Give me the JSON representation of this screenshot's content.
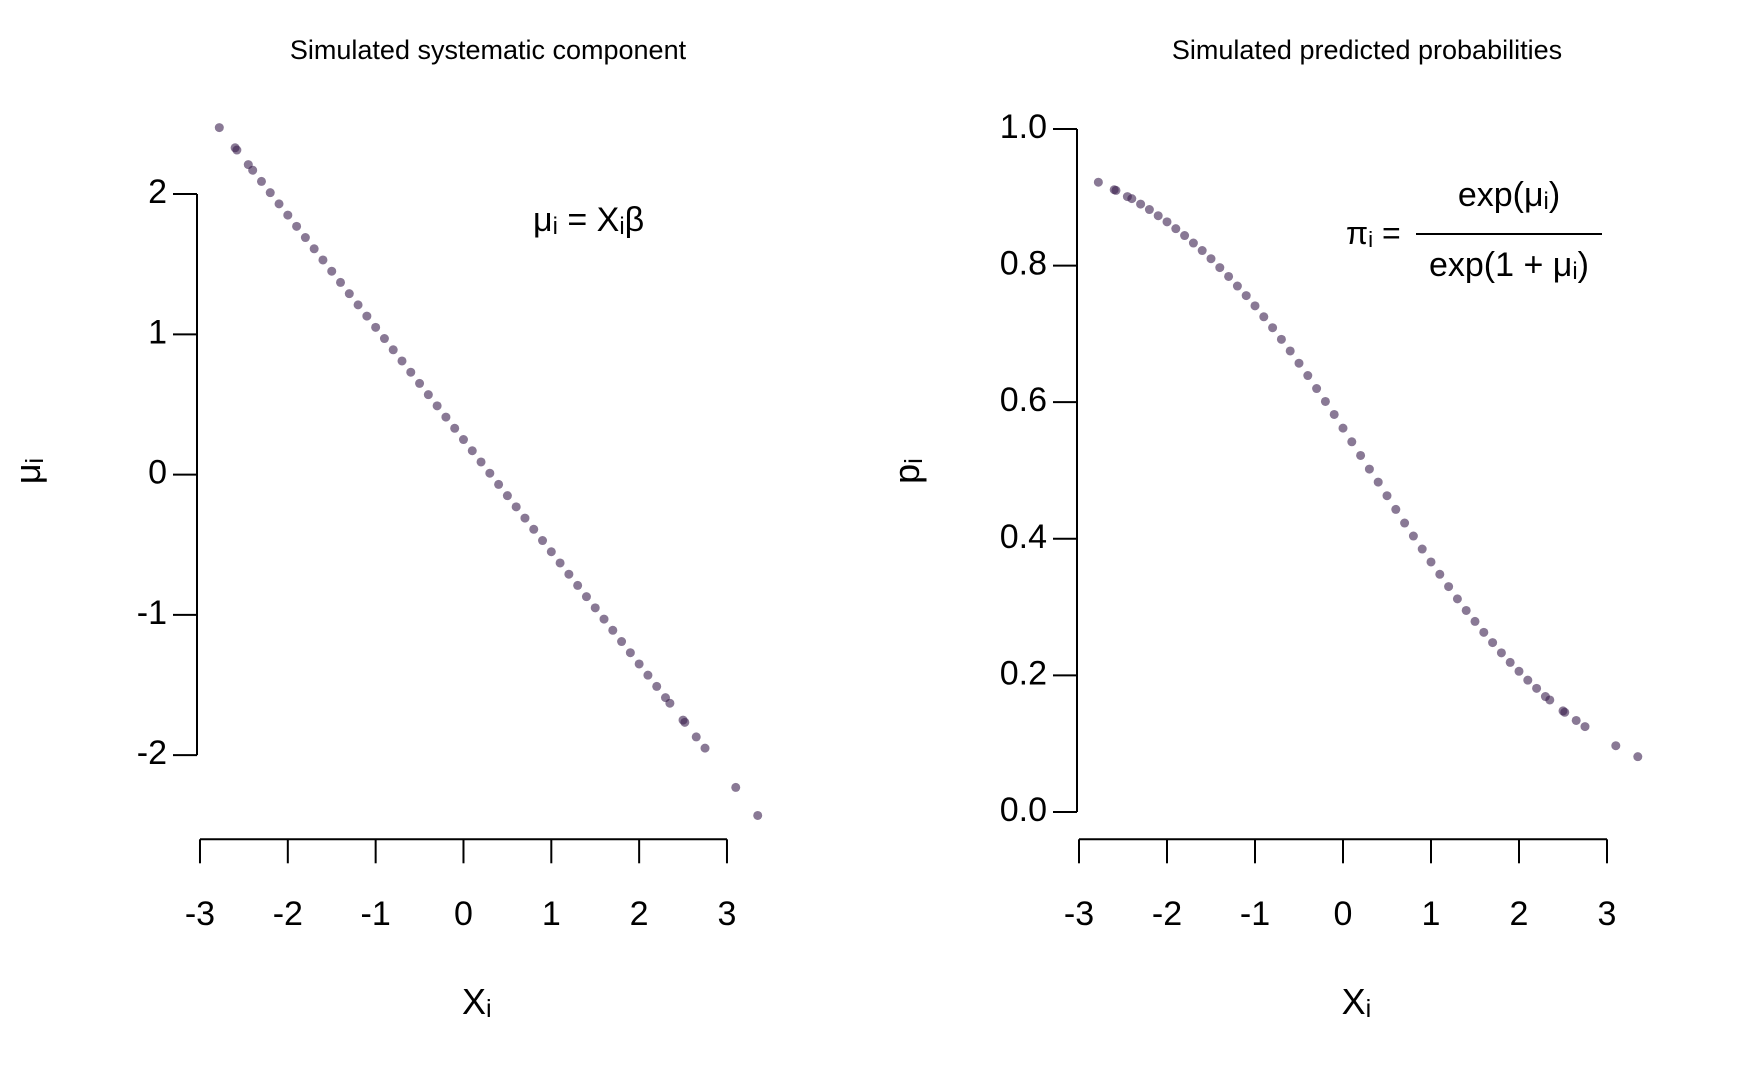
{
  "chart_data": [
    {
      "type": "scatter",
      "title": "Simulated systematic component",
      "xlabel": [
        {
          "text": "X"
        },
        {
          "text": "i",
          "sub": true
        }
      ],
      "ylabel": [
        {
          "text": "μ"
        },
        {
          "text": "i",
          "sub": true
        }
      ],
      "annotation": [
        {
          "text": "μ"
        },
        {
          "text": "i",
          "sub": true
        },
        {
          "text": " = X"
        },
        {
          "text": "i",
          "sub": true
        },
        {
          "text": "β"
        }
      ],
      "xlim": [
        -3.1,
        3.45
      ],
      "ylim": [
        -2.6,
        2.6
      ],
      "xticks": [
        -3,
        -2,
        -1,
        0,
        1,
        2,
        3
      ],
      "yticks": [
        -2,
        -1,
        0,
        1,
        2
      ],
      "series": [
        {
          "color": "#3b1f4e",
          "x": [
            -2.78,
            -2.6,
            -2.58,
            -2.45,
            -2.4,
            -2.3,
            -2.2,
            -2.1,
            -2.0,
            -1.9,
            -1.8,
            -1.7,
            -1.6,
            -1.5,
            -1.4,
            -1.3,
            -1.2,
            -1.1,
            -1.0,
            -0.9,
            -0.8,
            -0.7,
            -0.6,
            -0.5,
            -0.4,
            -0.3,
            -0.2,
            -0.1,
            0,
            0.1,
            0.2,
            0.3,
            0.4,
            0.5,
            0.6,
            0.7,
            0.8,
            0.9,
            1.0,
            1.1,
            1.2,
            1.3,
            1.4,
            1.5,
            1.6,
            1.7,
            1.8,
            1.9,
            2.0,
            2.1,
            2.2,
            2.3,
            2.35,
            2.5,
            2.52,
            2.65,
            2.75,
            3.1,
            3.35
          ],
          "values": [
            2.474,
            2.33,
            2.314,
            2.21,
            2.17,
            2.09,
            2.01,
            1.93,
            1.85,
            1.77,
            1.69,
            1.61,
            1.53,
            1.45,
            1.37,
            1.29,
            1.21,
            1.13,
            1.05,
            0.97,
            0.89,
            0.81,
            0.73,
            0.65,
            0.57,
            0.49,
            0.41,
            0.33,
            0.25,
            0.17,
            0.09,
            0.01,
            -0.07,
            -0.15,
            -0.23,
            -0.31,
            -0.39,
            -0.47,
            -0.55,
            -0.63,
            -0.71,
            -0.79,
            -0.87,
            -0.95,
            -1.03,
            -1.11,
            -1.19,
            -1.27,
            -1.35,
            -1.43,
            -1.51,
            -1.59,
            -1.63,
            -1.75,
            -1.766,
            -1.87,
            -1.95,
            -2.23,
            -2.43
          ]
        }
      ]
    },
    {
      "type": "scatter",
      "title": "Simulated predicted probabilities",
      "xlabel": [
        {
          "text": "X"
        },
        {
          "text": "i",
          "sub": true
        }
      ],
      "ylabel": [
        {
          "text": "p"
        },
        {
          "text": "i",
          "sub": true
        }
      ],
      "annotation": {
        "lhs": [
          {
            "text": "π"
          },
          {
            "text": "i",
            "sub": true
          },
          {
            "text": " ="
          }
        ],
        "numerator": [
          {
            "text": "exp(μ"
          },
          {
            "text": "i",
            "sub": true
          },
          {
            "text": ")"
          }
        ],
        "denominator": [
          {
            "text": "exp(1 + μ"
          },
          {
            "text": "i",
            "sub": true
          },
          {
            "text": ")"
          }
        ]
      },
      "xlim": [
        -3.1,
        3.45
      ],
      "ylim": [
        -0.04,
        1.02
      ],
      "xticks": [
        -3,
        -2,
        -1,
        0,
        1,
        2,
        3
      ],
      "yticks": [
        {
          "value": 0,
          "label": "0.0"
        },
        {
          "value": 0.2,
          "label": "0.2"
        },
        {
          "value": 0.4,
          "label": "0.4"
        },
        {
          "value": 0.6,
          "label": "0.6"
        },
        {
          "value": 0.8,
          "label": "0.8"
        },
        {
          "value": 1,
          "label": "1.0"
        }
      ],
      "series": [
        {
          "color": "#3b1f4e",
          "x": [
            -2.78,
            -2.6,
            -2.58,
            -2.45,
            -2.4,
            -2.3,
            -2.2,
            -2.1,
            -2.0,
            -1.9,
            -1.8,
            -1.7,
            -1.6,
            -1.5,
            -1.4,
            -1.3,
            -1.2,
            -1.1,
            -1.0,
            -0.9,
            -0.8,
            -0.7,
            -0.6,
            -0.5,
            -0.4,
            -0.3,
            -0.2,
            -0.1,
            0,
            0.1,
            0.2,
            0.3,
            0.4,
            0.5,
            0.6,
            0.7,
            0.8,
            0.9,
            1.0,
            1.1,
            1.2,
            1.3,
            1.4,
            1.5,
            1.6,
            1.7,
            1.8,
            1.9,
            2.0,
            2.1,
            2.2,
            2.3,
            2.35,
            2.5,
            2.52,
            2.65,
            2.75,
            3.1,
            3.35
          ],
          "values": [
            0.922,
            0.911,
            0.91,
            0.901,
            0.898,
            0.89,
            0.882,
            0.873,
            0.864,
            0.854,
            0.844,
            0.833,
            0.822,
            0.81,
            0.797,
            0.784,
            0.77,
            0.756,
            0.741,
            0.725,
            0.709,
            0.692,
            0.675,
            0.657,
            0.639,
            0.62,
            0.601,
            0.582,
            0.562,
            0.542,
            0.522,
            0.502,
            0.483,
            0.463,
            0.443,
            0.423,
            0.404,
            0.385,
            0.366,
            0.348,
            0.33,
            0.312,
            0.295,
            0.279,
            0.263,
            0.248,
            0.233,
            0.219,
            0.206,
            0.193,
            0.181,
            0.169,
            0.164,
            0.148,
            0.146,
            0.134,
            0.125,
            0.097,
            0.081
          ]
        }
      ]
    }
  ]
}
